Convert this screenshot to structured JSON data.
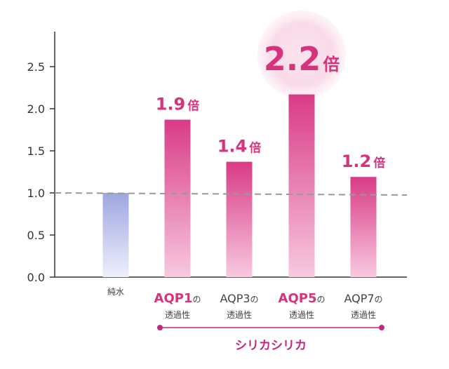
{
  "chart_data": {
    "type": "bar",
    "ylim": [
      0,
      2.8
    ],
    "yticks": [
      "0.0",
      "0.5",
      "1.0",
      "1.5",
      "2.0",
      "2.5"
    ],
    "reference_line": 1.0,
    "grid": false,
    "categories": [
      {
        "name": "純水",
        "suffix": "",
        "sub": "",
        "highlight": false
      },
      {
        "name": "AQP1",
        "suffix": "の",
        "sub": "透過性",
        "highlight": true
      },
      {
        "name": "AQP3",
        "suffix": "の",
        "sub": "透過性",
        "highlight": false
      },
      {
        "name": "AQP5",
        "suffix": "の",
        "sub": "透過性",
        "highlight": true
      },
      {
        "name": "AQP7",
        "suffix": "の",
        "sub": "透過性",
        "highlight": false
      }
    ],
    "values": [
      1.0,
      1.87,
      1.37,
      2.17,
      1.19
    ],
    "data_labels": [
      {
        "value": "",
        "unit": ""
      },
      {
        "value": "1.9",
        "unit": "倍"
      },
      {
        "value": "1.4",
        "unit": "倍"
      },
      {
        "value": "2.2",
        "unit": "倍",
        "emphasis": true
      },
      {
        "value": "1.2",
        "unit": "倍"
      }
    ],
    "group_label": "シリカシリカ",
    "colors": {
      "baseline_top": "#9ea6e0",
      "baseline_bottom": "#eef0fb",
      "bar_top": "#d93b86",
      "bar_bottom": "#f7c9df",
      "label": "#d6337c",
      "highlight_circle": "#f9dbe8",
      "bracket": "#c2287f",
      "reference_line": "#999999",
      "axis": "#333333"
    }
  }
}
